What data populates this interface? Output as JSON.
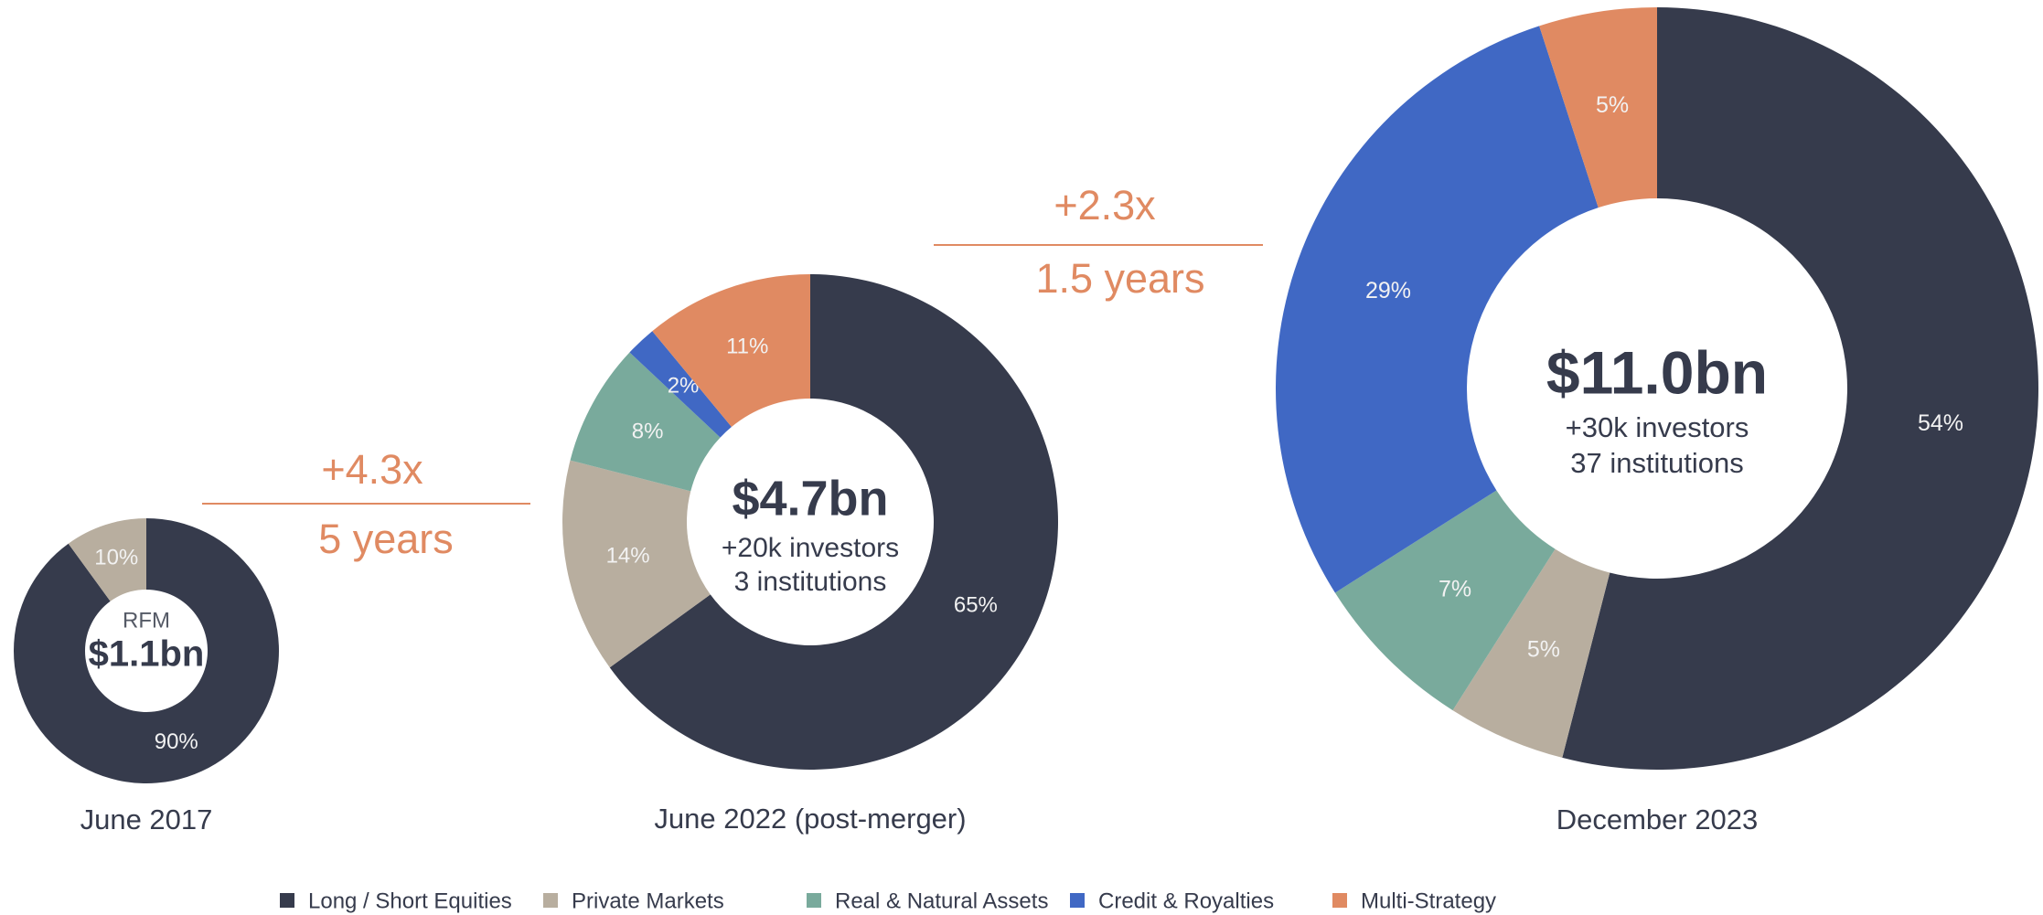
{
  "chart_data": [
    {
      "type": "pie",
      "title": "June 2017",
      "center_labels": [
        "RFM",
        "$1.1bn"
      ],
      "values": [
        90,
        10,
        null,
        null,
        null
      ],
      "value_labels": [
        "90%",
        "10%",
        null,
        null,
        null
      ]
    },
    {
      "type": "pie",
      "title": "June 2022 (post-merger)",
      "center_labels": [
        "$4.7bn",
        "+20k investors",
        "3 institutions"
      ],
      "values": [
        65,
        14,
        8,
        2,
        11
      ],
      "value_labels": [
        "65%",
        "14%",
        "8%",
        "2%",
        "11%"
      ]
    },
    {
      "type": "pie",
      "title": "December 2023",
      "center_labels": [
        "$11.0bn",
        "+30k investors",
        "37 institutions"
      ],
      "values": [
        54,
        5,
        7,
        29,
        5
      ],
      "value_labels": [
        "54%",
        "5%",
        "7%",
        "29%",
        "5%"
      ]
    }
  ],
  "legend": {
    "labels": [
      "Long / Short Equities",
      "Private Markets",
      "Real & Natural Assets",
      "Credit & Royalties",
      "Multi-Strategy"
    ],
    "colors": [
      "#363b4c",
      "#b8ae9f",
      "#79aa9c",
      "#4068c4",
      "#e08a62"
    ]
  },
  "annotations": [
    {
      "multiple": "+4.3x",
      "period": "5 years"
    },
    {
      "multiple": "+2.3x",
      "period": "1.5 years"
    }
  ]
}
